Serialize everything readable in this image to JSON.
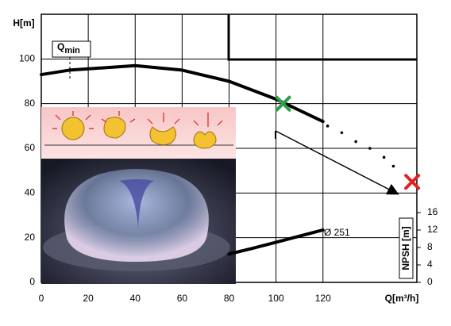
{
  "chart_data": {
    "type": "line",
    "ylabel": "H[m]",
    "xlabel": "Q[m³/h]",
    "y2label": "NPSH [m]",
    "annotations": {
      "qmin": "Q",
      "qmin_sub": "min",
      "impeller": "Ø 251"
    },
    "xlim": [
      0,
      160
    ],
    "xticks": [
      0,
      20,
      40,
      60,
      80,
      100,
      120
    ],
    "ylim": [
      0,
      120
    ],
    "yticks": [
      0,
      20,
      40,
      60,
      80,
      100
    ],
    "y2lim": [
      0,
      61.45
    ],
    "y2ticks": [
      0,
      4,
      8,
      12,
      16
    ],
    "grid": true,
    "series": [
      {
        "color": "#000000",
        "style": "solid",
        "x": [
          0,
          12,
          40,
          60,
          80,
          100,
          120
        ],
        "values": [
          93,
          95,
          97,
          95,
          90,
          82,
          72
        ]
      },
      {
        "color": "#000000",
        "style": "dotted",
        "x": [
          122,
          128,
          134,
          140,
          146,
          150
        ],
        "values": [
          70,
          67,
          63,
          60,
          56,
          52
        ]
      },
      {
        "color": "#000000",
        "style": "solid",
        "axis": "y2",
        "x": [
          80,
          90,
          100,
          110,
          120
        ],
        "values": [
          6.5,
          7.8,
          9.2,
          10.6,
          12
        ]
      }
    ],
    "points": [
      {
        "x": 103,
        "y": 80,
        "color": "#2e9e4a"
      },
      {
        "x": 158,
        "y": 45,
        "color": "#e02020"
      }
    ]
  }
}
